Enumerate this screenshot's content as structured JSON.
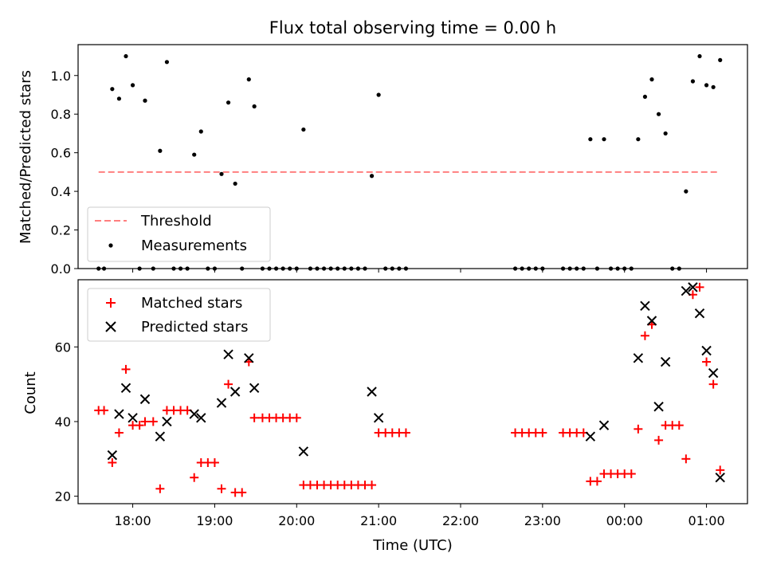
{
  "chart_data": [
    {
      "type": "scatter",
      "title": "Flux total observing time = 0.00 h",
      "xlabel": "",
      "ylabel": "Matched/Predicted stars",
      "xlim": [
        "17:20",
        "01:30"
      ],
      "ylim": [
        0,
        1.16
      ],
      "yticks": [
        "0.0",
        "0.2",
        "0.4",
        "0.6",
        "0.8",
        "1.0"
      ],
      "legend_position": "lower-left",
      "threshold": {
        "name": "Threshold",
        "value": 0.5,
        "x_range": [
          "17:35",
          "01:08"
        ],
        "color": "#ff7f7f"
      },
      "series": [
        {
          "name": "Measurements",
          "color": "#000000",
          "points": [
            [
              "17:35",
              0
            ],
            [
              "17:39",
              0
            ],
            [
              "17:45",
              0.93
            ],
            [
              "17:50",
              0.88
            ],
            [
              "17:55",
              1.1
            ],
            [
              "18:00",
              0.95
            ],
            [
              "18:05",
              0
            ],
            [
              "18:09",
              0.87
            ],
            [
              "18:15",
              0
            ],
            [
              "18:20",
              0.61
            ],
            [
              "18:25",
              1.07
            ],
            [
              "18:30",
              0
            ],
            [
              "18:35",
              0
            ],
            [
              "18:40",
              0
            ],
            [
              "18:45",
              0.59
            ],
            [
              "18:50",
              0.71
            ],
            [
              "18:55",
              0
            ],
            [
              "19:00",
              0
            ],
            [
              "19:05",
              0.49
            ],
            [
              "19:10",
              0.86
            ],
            [
              "19:15",
              0.44
            ],
            [
              "19:20",
              0
            ],
            [
              "19:25",
              0.98
            ],
            [
              "19:29",
              0.84
            ],
            [
              "19:35",
              0
            ],
            [
              "19:40",
              0
            ],
            [
              "19:45",
              0
            ],
            [
              "19:50",
              0
            ],
            [
              "19:55",
              0
            ],
            [
              "20:00",
              0
            ],
            [
              "20:05",
              0.72
            ],
            [
              "20:10",
              0
            ],
            [
              "20:15",
              0
            ],
            [
              "20:20",
              0
            ],
            [
              "20:25",
              0
            ],
            [
              "20:30",
              0
            ],
            [
              "20:35",
              0
            ],
            [
              "20:40",
              0
            ],
            [
              "20:45",
              0
            ],
            [
              "20:50",
              0
            ],
            [
              "20:55",
              0.48
            ],
            [
              "21:00",
              0.9
            ],
            [
              "21:05",
              0
            ],
            [
              "21:10",
              0
            ],
            [
              "21:15",
              0
            ],
            [
              "21:20",
              0
            ],
            [
              "22:40",
              0
            ],
            [
              "22:45",
              0
            ],
            [
              "22:50",
              0
            ],
            [
              "22:55",
              0
            ],
            [
              "23:00",
              0
            ],
            [
              "23:15",
              0
            ],
            [
              "23:20",
              0
            ],
            [
              "23:25",
              0
            ],
            [
              "23:30",
              0
            ],
            [
              "23:35",
              0.67
            ],
            [
              "23:40",
              0
            ],
            [
              "23:45",
              0.67
            ],
            [
              "23:50",
              0
            ],
            [
              "23:55",
              0
            ],
            [
              "00:00",
              0
            ],
            [
              "00:05",
              0
            ],
            [
              "00:10",
              0.67
            ],
            [
              "00:15",
              0.89
            ],
            [
              "00:20",
              0.98
            ],
            [
              "00:25",
              0.8
            ],
            [
              "00:30",
              0.7
            ],
            [
              "00:35",
              0
            ],
            [
              "00:40",
              0
            ],
            [
              "00:45",
              0.4
            ],
            [
              "00:50",
              0.97
            ],
            [
              "00:55",
              1.1
            ],
            [
              "01:00",
              0.95
            ],
            [
              "01:05",
              0.94
            ],
            [
              "01:10",
              1.08
            ]
          ]
        }
      ]
    },
    {
      "type": "scatter",
      "title": "",
      "xlabel": "Time (UTC)",
      "ylabel": "Count",
      "xlim": [
        "17:20",
        "01:30"
      ],
      "ylim": [
        18,
        78
      ],
      "yticks": [
        "20",
        "40",
        "60"
      ],
      "xticks": [
        "18:00",
        "19:00",
        "20:00",
        "21:00",
        "22:00",
        "23:00",
        "00:00",
        "01:00"
      ],
      "legend_position": "upper-left",
      "series": [
        {
          "name": "Matched stars",
          "marker": "plus",
          "color": "#ff0000",
          "points": [
            [
              "17:35",
              43
            ],
            [
              "17:39",
              43
            ],
            [
              "17:45",
              29
            ],
            [
              "17:50",
              37
            ],
            [
              "17:55",
              54
            ],
            [
              "18:00",
              39
            ],
            [
              "18:05",
              39
            ],
            [
              "18:09",
              40
            ],
            [
              "18:15",
              40
            ],
            [
              "18:20",
              22
            ],
            [
              "18:25",
              43
            ],
            [
              "18:30",
              43
            ],
            [
              "18:35",
              43
            ],
            [
              "18:40",
              43
            ],
            [
              "18:45",
              25
            ],
            [
              "18:50",
              29
            ],
            [
              "18:55",
              29
            ],
            [
              "19:00",
              29
            ],
            [
              "19:05",
              22
            ],
            [
              "19:10",
              50
            ],
            [
              "19:15",
              21
            ],
            [
              "19:20",
              21
            ],
            [
              "19:25",
              56
            ],
            [
              "19:29",
              41
            ],
            [
              "19:35",
              41
            ],
            [
              "19:40",
              41
            ],
            [
              "19:45",
              41
            ],
            [
              "19:50",
              41
            ],
            [
              "19:55",
              41
            ],
            [
              "20:00",
              41
            ],
            [
              "20:05",
              23
            ],
            [
              "20:10",
              23
            ],
            [
              "20:15",
              23
            ],
            [
              "20:20",
              23
            ],
            [
              "20:25",
              23
            ],
            [
              "20:30",
              23
            ],
            [
              "20:35",
              23
            ],
            [
              "20:40",
              23
            ],
            [
              "20:45",
              23
            ],
            [
              "20:50",
              23
            ],
            [
              "20:55",
              23
            ],
            [
              "21:00",
              37
            ],
            [
              "21:05",
              37
            ],
            [
              "21:10",
              37
            ],
            [
              "21:15",
              37
            ],
            [
              "21:20",
              37
            ],
            [
              "22:40",
              37
            ],
            [
              "22:45",
              37
            ],
            [
              "22:50",
              37
            ],
            [
              "22:55",
              37
            ],
            [
              "23:00",
              37
            ],
            [
              "23:15",
              37
            ],
            [
              "23:20",
              37
            ],
            [
              "23:25",
              37
            ],
            [
              "23:30",
              37
            ],
            [
              "23:35",
              24
            ],
            [
              "23:40",
              24
            ],
            [
              "23:45",
              26
            ],
            [
              "23:50",
              26
            ],
            [
              "23:55",
              26
            ],
            [
              "00:00",
              26
            ],
            [
              "00:05",
              26
            ],
            [
              "00:10",
              38
            ],
            [
              "00:15",
              63
            ],
            [
              "00:20",
              66
            ],
            [
              "00:25",
              35
            ],
            [
              "00:30",
              39
            ],
            [
              "00:35",
              39
            ],
            [
              "00:40",
              39
            ],
            [
              "00:45",
              30
            ],
            [
              "00:50",
              74
            ],
            [
              "00:55",
              76
            ],
            [
              "01:00",
              56
            ],
            [
              "01:05",
              50
            ],
            [
              "01:10",
              27
            ]
          ]
        },
        {
          "name": "Predicted stars",
          "marker": "x",
          "color": "#000000",
          "points": [
            [
              "17:45",
              31
            ],
            [
              "17:50",
              42
            ],
            [
              "17:55",
              49
            ],
            [
              "18:00",
              41
            ],
            [
              "18:09",
              46
            ],
            [
              "18:20",
              36
            ],
            [
              "18:25",
              40
            ],
            [
              "18:45",
              42
            ],
            [
              "18:50",
              41
            ],
            [
              "19:05",
              45
            ],
            [
              "19:10",
              58
            ],
            [
              "19:15",
              48
            ],
            [
              "19:25",
              57
            ],
            [
              "19:29",
              49
            ],
            [
              "20:05",
              32
            ],
            [
              "20:55",
              48
            ],
            [
              "21:00",
              41
            ],
            [
              "23:35",
              36
            ],
            [
              "23:45",
              39
            ],
            [
              "00:10",
              57
            ],
            [
              "00:15",
              71
            ],
            [
              "00:20",
              67
            ],
            [
              "00:25",
              44
            ],
            [
              "00:30",
              56
            ],
            [
              "00:45",
              75
            ],
            [
              "00:50",
              76
            ],
            [
              "00:55",
              69
            ],
            [
              "01:00",
              59
            ],
            [
              "01:05",
              53
            ],
            [
              "01:10",
              25
            ]
          ]
        }
      ]
    }
  ]
}
